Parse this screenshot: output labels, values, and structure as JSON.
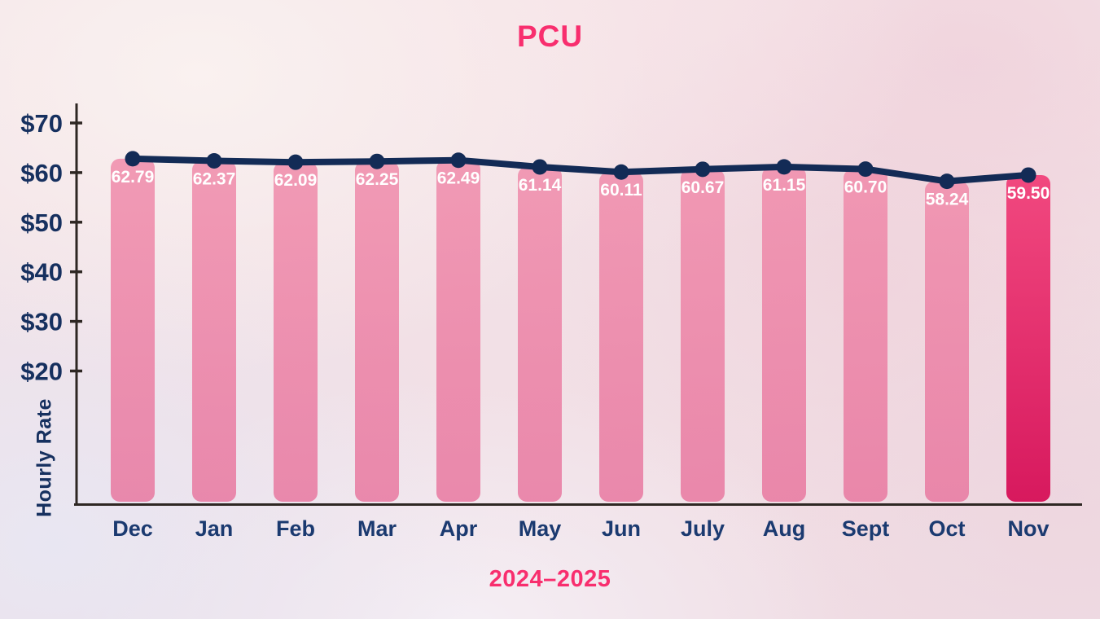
{
  "chart_data": {
    "type": "bar",
    "overlay": "line",
    "title": "PCU",
    "xlabel": "2024–2025",
    "ylabel": "Hourly Rate",
    "categories": [
      "Dec",
      "Jan",
      "Feb",
      "Mar",
      "Apr",
      "May",
      "Jun",
      "July",
      "Aug",
      "Sept",
      "Oct",
      "Nov"
    ],
    "series": [
      {
        "name": "Hourly Rate",
        "values": [
          62.79,
          62.37,
          62.09,
          62.25,
          62.49,
          61.14,
          60.11,
          60.67,
          61.15,
          60.7,
          58.24,
          59.5
        ]
      }
    ],
    "value_labels": [
      "62.79",
      "62.37",
      "62.09",
      "62.25",
      "62.49",
      "61.14",
      "60.11",
      "60.67",
      "61.15",
      "60.70",
      "58.24",
      "59.50"
    ],
    "y_tick_labels": [
      "$70",
      "$60",
      "$50",
      "$40",
      "$30",
      "$20"
    ],
    "y_tick_values": [
      70,
      60,
      50,
      40,
      30,
      20
    ],
    "ylim_visible": [
      20,
      70
    ],
    "y_axis_truncated": true,
    "grid": "off",
    "legend": "none",
    "highlight_index": 11,
    "colors": {
      "accent_pink": "#f82e6e",
      "bar_top": "#f08cab",
      "bar_bottom": "#e878a0",
      "highlight_bar_top": "#f1417a",
      "highlight_bar_bottom": "#d60f57",
      "trend_line": "#132b56",
      "marker": "#132b56",
      "axis": "#2e2723",
      "y_tick_label": "#16305f",
      "month_label": "#1b3a70",
      "value_label": "#ffffff"
    }
  }
}
